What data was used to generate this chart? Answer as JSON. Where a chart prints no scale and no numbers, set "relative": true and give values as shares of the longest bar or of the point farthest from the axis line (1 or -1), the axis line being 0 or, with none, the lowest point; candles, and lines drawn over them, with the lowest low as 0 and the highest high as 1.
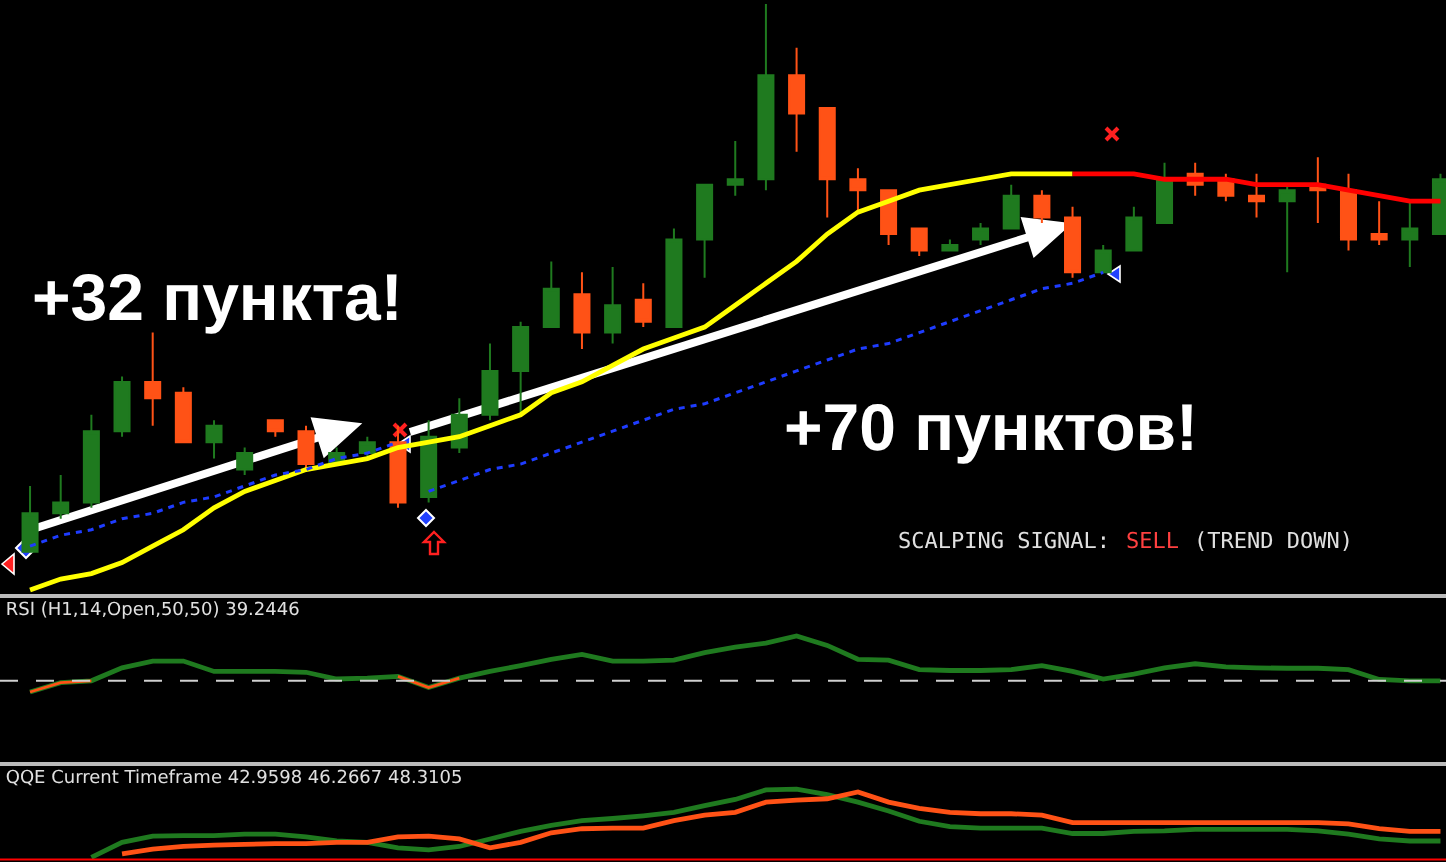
{
  "chart_data": [
    {
      "type": "candlestick",
      "relative": true,
      "categories": [
        null,
        null,
        null,
        null,
        null,
        null,
        null,
        null,
        null,
        null,
        null,
        null,
        null,
        null,
        null,
        null,
        null,
        null,
        null,
        null,
        null,
        null,
        null,
        null,
        null,
        null,
        null,
        null,
        null,
        null,
        null,
        null,
        null,
        null,
        null,
        null,
        null,
        null,
        null,
        null,
        null,
        null,
        null,
        null,
        null,
        null,
        null
      ],
      "ohlc": [
        [
          0,
          0.12,
          0,
          0.07
        ],
        [
          0.07,
          0.14,
          0.06,
          0.09
        ],
        [
          0.09,
          0.25,
          0.08,
          0.22
        ],
        [
          0.22,
          0.32,
          0.21,
          0.31
        ],
        [
          0.31,
          0.4,
          0.23,
          0.28
        ],
        [
          0.29,
          0.3,
          0.2,
          0.2
        ],
        [
          0.2,
          0.24,
          0.17,
          0.23
        ],
        [
          0.15,
          0.19,
          0.14,
          0.18
        ],
        [
          0.24,
          0.24,
          0.21,
          0.22
        ],
        [
          0.22,
          0.23,
          0.15,
          0.16
        ],
        [
          0.16,
          0.19,
          0.16,
          0.18
        ],
        [
          0.18,
          0.21,
          0.17,
          0.2
        ],
        [
          0.2,
          0.23,
          0.08,
          0.09
        ],
        [
          0.1,
          0.24,
          0.09,
          0.21
        ],
        [
          0.19,
          0.28,
          0.18,
          0.25
        ],
        [
          0.25,
          0.38,
          0.24,
          0.33
        ],
        [
          0.33,
          0.42,
          0.25,
          0.41
        ],
        [
          0.41,
          0.53,
          0.41,
          0.48
        ],
        [
          0.47,
          0.51,
          0.37,
          0.4
        ],
        [
          0.4,
          0.52,
          0.38,
          0.45
        ],
        [
          0.46,
          0.49,
          0.41,
          0.42
        ],
        [
          0.41,
          0.59,
          0.41,
          0.57
        ],
        [
          0.57,
          0.67,
          0.5,
          0.67
        ],
        [
          0.67,
          0.75,
          0.65,
          0.68
        ],
        [
          0.68,
          1,
          0.66,
          0.87
        ],
        [
          0.87,
          0.92,
          0.73,
          0.8
        ],
        [
          0.81,
          0.81,
          0.61,
          0.68
        ],
        [
          0.68,
          0.7,
          0.62,
          0.66
        ],
        [
          0.66,
          0.66,
          0.56,
          0.58
        ],
        [
          0.59,
          0.59,
          0.54,
          0.55
        ],
        [
          0.55,
          0.57,
          0.55,
          0.56
        ],
        [
          0.57,
          0.6,
          0.56,
          0.59
        ],
        [
          0.59,
          0.67,
          0.59,
          0.65
        ],
        [
          0.65,
          0.66,
          0.6,
          0.61
        ],
        [
          0.61,
          0.63,
          0.5,
          0.51
        ],
        [
          0.51,
          0.56,
          0.51,
          0.55
        ],
        [
          0.55,
          0.63,
          0.55,
          0.61
        ],
        [
          0.6,
          0.71,
          0.6,
          0.68
        ],
        [
          0.69,
          0.71,
          0.65,
          0.67
        ],
        [
          0.68,
          0.69,
          0.64,
          0.65
        ],
        [
          0.65,
          0.69,
          0.61,
          0.64
        ],
        [
          0.64,
          0.67,
          0.51,
          0.66
        ],
        [
          0.67,
          0.72,
          0.6,
          0.66
        ],
        [
          0.66,
          0.69,
          0.55,
          0.57
        ],
        [
          0.58,
          0.64,
          0.56,
          0.57
        ],
        [
          0.57,
          0.64,
          0.52,
          0.59
        ],
        [
          0.58,
          0.69,
          0.58,
          0.68
        ]
      ],
      "colors": [
        "#1f7a1f",
        "#1f7a1f",
        "#1f7a1f",
        "#1f7a1f",
        "#ff5216",
        "#ff5216",
        "#1f7a1f",
        "#1f7a1f",
        "#ff5216",
        "#ff5216",
        "#1f7a1f",
        "#1f7a1f",
        "#ff5216",
        "#1f7a1f",
        "#1f7a1f",
        "#1f7a1f",
        "#1f7a1f",
        "#1f7a1f",
        "#ff5216",
        "#1f7a1f",
        "#ff5216",
        "#1f7a1f",
        "#1f7a1f",
        "#1f7a1f",
        "#1f7a1f",
        "#ff5216",
        "#ff5216",
        "#ff5216",
        "#ff5216",
        "#ff5216",
        "#1f7a1f",
        "#1f7a1f",
        "#1f7a1f",
        "#ff5216",
        "#ff5216",
        "#1f7a1f",
        "#1f7a1f",
        "#1f7a1f",
        "#ff5216",
        "#ff5216",
        "#ff5216",
        "#1f7a1f",
        "#ff5216",
        "#ff5216",
        "#ff5216",
        "#1f7a1f",
        "#1f7a1f"
      ],
      "series": [
        {
          "type": "line",
          "color": "#ffff00",
          "values": [
            -0.07,
            -0.05,
            -0.04,
            -0.02,
            0.01,
            0.04,
            0.08,
            0.11,
            0.13,
            0.15,
            0.16,
            0.17,
            0.19,
            0.2,
            0.21,
            0.23,
            0.25,
            0.29,
            0.31,
            0.34,
            0.37,
            0.39,
            0.41,
            0.45,
            0.49,
            0.53,
            0.58,
            0.62,
            0.64,
            0.66,
            0.67,
            0.68,
            0.69,
            0.69,
            0.69,
            null,
            null,
            null,
            null,
            null,
            null,
            null,
            null,
            null,
            null,
            null,
            null
          ]
        },
        {
          "type": "line",
          "color": "#ff0000",
          "values": [
            null,
            null,
            null,
            null,
            null,
            null,
            null,
            null,
            null,
            null,
            null,
            null,
            null,
            null,
            null,
            null,
            null,
            null,
            null,
            null,
            null,
            null,
            null,
            null,
            null,
            null,
            null,
            null,
            null,
            null,
            null,
            null,
            null,
            null,
            0.69,
            0.69,
            0.69,
            0.68,
            0.68,
            0.68,
            0.67,
            0.67,
            0.67,
            0.66,
            0.65,
            0.64,
            0.64
          ]
        },
        {
          "type": "line",
          "color": "#1e3cff",
          "line_style": "dotted",
          "values": [
            0.01,
            0.03,
            0.04,
            0.06,
            0.07,
            0.09,
            0.1,
            0.12,
            0.14,
            0.15,
            0.17,
            0.18,
            0.2,
            null,
            null,
            null,
            null,
            null,
            null,
            null,
            null,
            null,
            null,
            null,
            null,
            null,
            null,
            null,
            null,
            null,
            null,
            null,
            null,
            null,
            null,
            null,
            null,
            null,
            null,
            null,
            null,
            null,
            null,
            null,
            null,
            null,
            null
          ]
        },
        {
          "type": "line",
          "color": "#1e3cff",
          "line_style": "dotted",
          "values": [
            null,
            null,
            null,
            null,
            null,
            null,
            null,
            null,
            null,
            null,
            null,
            null,
            null,
            0.11,
            0.13,
            0.15,
            0.16,
            0.18,
            0.2,
            0.22,
            0.24,
            0.26,
            0.27,
            0.29,
            0.31,
            0.33,
            0.35,
            0.37,
            0.38,
            0.4,
            0.42,
            0.44,
            0.46,
            0.48,
            0.49,
            0.51,
            null,
            null,
            null,
            null,
            null,
            null,
            null,
            null,
            null,
            null,
            null
          ]
        }
      ],
      "annotations": [
        "+32 пункта!",
        "+70 пунктов!",
        "SCALPING SIGNAL:",
        "SELL",
        "(TREND DOWN)"
      ]
    },
    {
      "type": "line",
      "relative": true,
      "title": "RSI (H1,14,Open,50,50) 39.2446",
      "categories": [
        null,
        null,
        null,
        null,
        null,
        null,
        null,
        null,
        null,
        null,
        null,
        null,
        null,
        null,
        null,
        null,
        null,
        null,
        null,
        null,
        null,
        null,
        null,
        null,
        null,
        null,
        null,
        null,
        null,
        null,
        null,
        null,
        null,
        null,
        null,
        null,
        null,
        null,
        null,
        null,
        null,
        null,
        null,
        null,
        null,
        null,
        null
      ],
      "series": [
        {
          "color": "#1f7a1f",
          "values": [
            -0.25,
            -0.04,
            0,
            0.29,
            0.44,
            0.44,
            0.21,
            0.21,
            0.21,
            0.19,
            0.04,
            0.06,
            0.1,
            -0.15,
            0.06,
            0.21,
            0.34,
            0.48,
            0.59,
            0.44,
            0.44,
            0.46,
            0.63,
            0.75,
            0.84,
            1,
            0.79,
            0.48,
            0.46,
            0.25,
            0.23,
            0.23,
            0.25,
            0.34,
            0.21,
            0.04,
            0.15,
            0.29,
            0.38,
            0.31,
            0.29,
            0.28,
            0.28,
            0.25,
            0.03,
            0,
            0
          ]
        },
        {
          "color": "#ff5216",
          "values": [
            -0.25,
            -0.04,
            0,
            null,
            null,
            null,
            null,
            null,
            null,
            null,
            null,
            null,
            null,
            null,
            null,
            null,
            null,
            null,
            null,
            null,
            null,
            null,
            null,
            null,
            null,
            null,
            null,
            null,
            null,
            null,
            null,
            null,
            null,
            null,
            null,
            null,
            null,
            null,
            null,
            null,
            null,
            null,
            null,
            null,
            null,
            null,
            null
          ]
        },
        {
          "color": "#ff5216",
          "values": [
            null,
            null,
            null,
            null,
            null,
            null,
            null,
            null,
            null,
            null,
            null,
            null,
            0.1,
            -0.15,
            0.06,
            null,
            null,
            null,
            null,
            null,
            null,
            null,
            null,
            null,
            null,
            null,
            null,
            null,
            null,
            null,
            null,
            null,
            null,
            null,
            null,
            null,
            null,
            null,
            null,
            null,
            null,
            null,
            null,
            null,
            null,
            null,
            null
          ]
        }
      ],
      "ref_lines": [
        {
          "axis": "y",
          "value": 0,
          "color": "#d0d0d0",
          "line_style": "dashed"
        }
      ]
    },
    {
      "type": "line",
      "relative": true,
      "title": "QQE Current Timeframe 42.9598 46.2667 48.3105",
      "categories": [
        null,
        null,
        null,
        null,
        null,
        null,
        null,
        null,
        null,
        null,
        null,
        null,
        null,
        null,
        null,
        null,
        null,
        null,
        null,
        null,
        null,
        null,
        null,
        null,
        null,
        null,
        null,
        null,
        null,
        null,
        null,
        null,
        null,
        null,
        null,
        null,
        null,
        null,
        null,
        null,
        null,
        null,
        null,
        null,
        null,
        null,
        null
      ],
      "series": [
        {
          "color": "#1f7a1f",
          "values": [
            null,
            null,
            0,
            0.22,
            0.31,
            0.32,
            0.32,
            0.34,
            0.34,
            0.3,
            0.24,
            0.22,
            0.14,
            0.11,
            0.16,
            0.27,
            0.38,
            0.47,
            0.54,
            0.57,
            0.61,
            0.66,
            0.76,
            0.85,
            0.99,
            1,
            0.92,
            0.81,
            0.68,
            0.53,
            0.45,
            0.43,
            0.43,
            0.43,
            0.35,
            0.35,
            0.38,
            0.39,
            0.41,
            0.41,
            0.41,
            0.41,
            0.39,
            0.34,
            0.27,
            0.24,
            0.24
          ]
        },
        {
          "color": "#ff5216",
          "values": [
            null,
            null,
            null,
            0.05,
            0.12,
            0.16,
            0.18,
            0.19,
            0.2,
            0.2,
            0.22,
            0.22,
            0.3,
            0.31,
            0.27,
            0.14,
            0.22,
            0.36,
            0.42,
            0.43,
            0.43,
            0.54,
            0.62,
            0.66,
            0.81,
            0.84,
            0.86,
            0.96,
            0.81,
            0.72,
            0.66,
            0.64,
            0.64,
            0.62,
            0.51,
            0.51,
            0.51,
            0.51,
            0.51,
            0.51,
            0.51,
            0.51,
            0.51,
            0.49,
            0.42,
            0.38,
            0.38
          ]
        }
      ],
      "ref_lines": [
        {
          "axis": "y",
          "value": -0.03,
          "color": "#ff0000",
          "line_style": "solid"
        }
      ]
    }
  ]
}
